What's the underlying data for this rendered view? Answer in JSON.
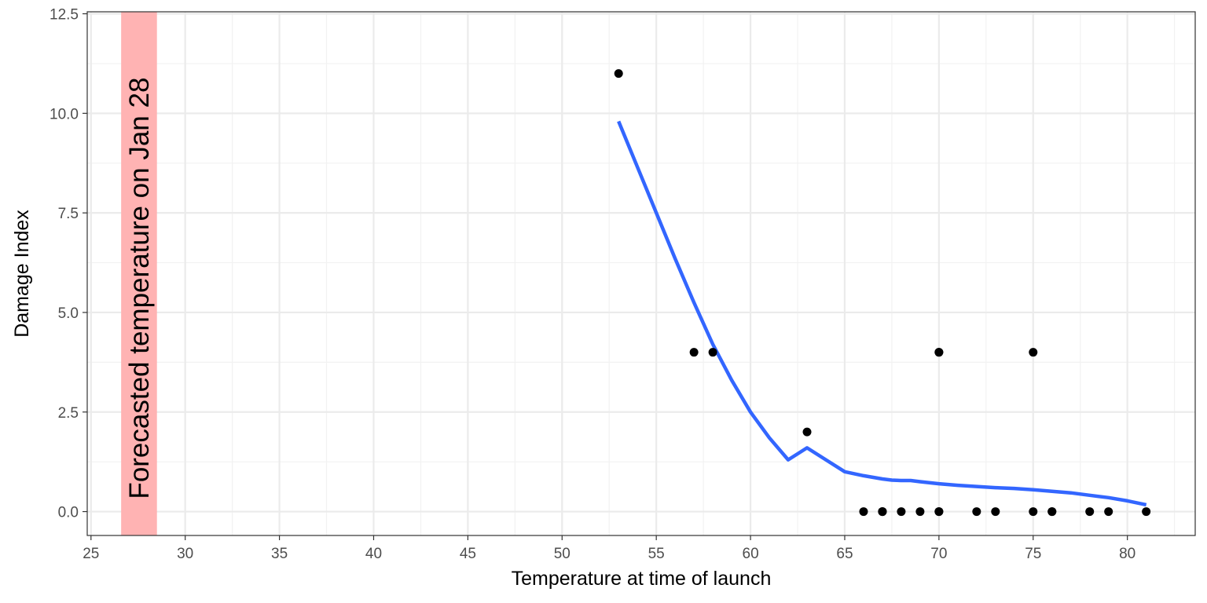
{
  "chart_data": {
    "type": "scatter",
    "title": "",
    "xlabel": "Temperature at time of launch",
    "ylabel": "Damage Index",
    "xlim": [
      24.8,
      83.6
    ],
    "ylim": [
      -0.6,
      12.55
    ],
    "x_ticks": [
      25,
      30,
      35,
      40,
      45,
      50,
      55,
      60,
      65,
      70,
      75,
      80
    ],
    "y_ticks": [
      0,
      2.5,
      5,
      7.5,
      10,
      12.5
    ],
    "x_tick_labels": [
      "25",
      "30",
      "35",
      "40",
      "45",
      "50",
      "55",
      "60",
      "65",
      "70",
      "75",
      "80"
    ],
    "y_tick_labels": [
      "0.0",
      "2.5",
      "5.0",
      "7.5",
      "10.0",
      "12.5"
    ],
    "grid": true,
    "theme": "bw",
    "points": {
      "color": "#000000",
      "x": [
        53,
        57,
        58,
        63,
        66,
        67,
        67,
        67,
        68,
        69,
        70,
        70,
        70,
        70,
        72,
        73,
        75,
        75,
        76,
        76,
        78,
        79,
        81
      ],
      "y": [
        11,
        4,
        4,
        2,
        0,
        0,
        0,
        0,
        0,
        0,
        4,
        0,
        4,
        0,
        0,
        0,
        0,
        4,
        0,
        0,
        0,
        0,
        0
      ]
    },
    "smooth": {
      "type": "line",
      "color": "#3366ff",
      "x": [
        53,
        54,
        55,
        56,
        57,
        58,
        59,
        60,
        61,
        62,
        63,
        64,
        65,
        66,
        67,
        67.5,
        68,
        68.5,
        69,
        70,
        71,
        72,
        73,
        74,
        75,
        76,
        77,
        78,
        79,
        80,
        81
      ],
      "y": [
        9.8,
        8.65,
        7.5,
        6.35,
        5.25,
        4.2,
        3.3,
        2.5,
        1.85,
        1.3,
        1.6,
        1.3,
        1.0,
        0.9,
        0.82,
        0.79,
        0.78,
        0.78,
        0.75,
        0.7,
        0.66,
        0.63,
        0.6,
        0.58,
        0.55,
        0.51,
        0.47,
        0.41,
        0.35,
        0.27,
        0.17
      ]
    },
    "highlight_band": {
      "x_range": [
        26.6,
        28.5
      ],
      "color": "#ffb3b3",
      "label": "Forecasted temperature on Jan 28"
    }
  }
}
